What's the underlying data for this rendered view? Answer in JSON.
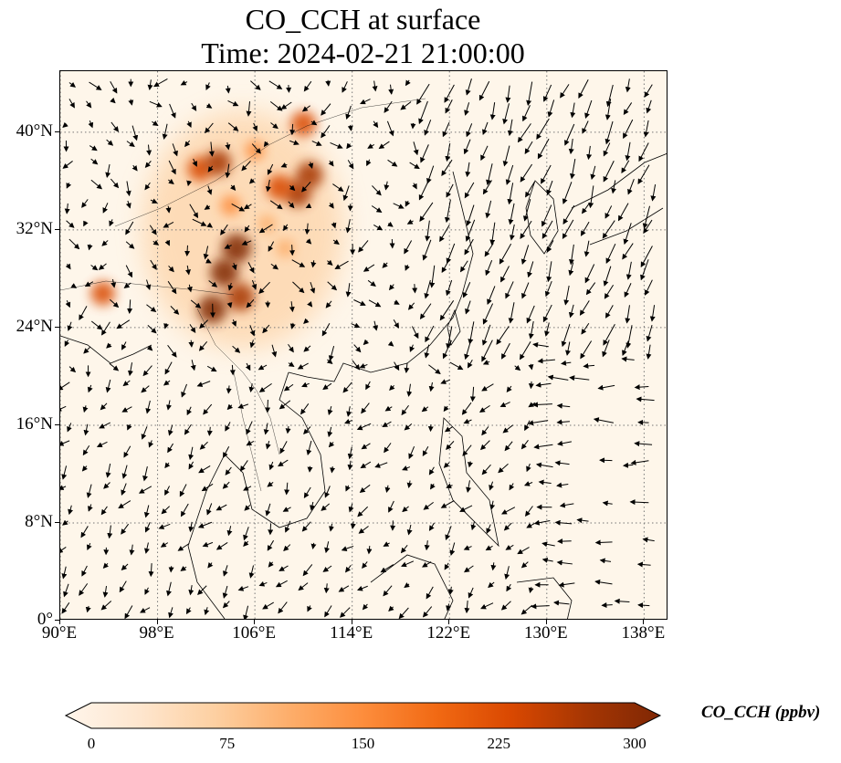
{
  "title_line1": "CO_CCH at surface",
  "title_line2": "Time: 2024-02-21 21:00:00",
  "map": {
    "extent": {
      "lon_min": 90,
      "lon_max": 140,
      "lat_min": 0,
      "lat_max": 45
    },
    "lat_ticks": [
      {
        "value": 40,
        "label": "40°N"
      },
      {
        "value": 32,
        "label": "32°N"
      },
      {
        "value": 24,
        "label": "24°N"
      },
      {
        "value": 16,
        "label": "16°N"
      },
      {
        "value": 8,
        "label": "8°N"
      },
      {
        "value": 0,
        "label": "0°"
      }
    ],
    "lon_ticks": [
      {
        "value": 90,
        "label": "90°E"
      },
      {
        "value": 98,
        "label": "98°E"
      },
      {
        "value": 106,
        "label": "106°E"
      },
      {
        "value": 114,
        "label": "114°E"
      },
      {
        "value": 122,
        "label": "122°E"
      },
      {
        "value": 130,
        "label": "130°E"
      },
      {
        "value": 138,
        "label": "138°E"
      }
    ],
    "gridlines": "dotted",
    "background_color": "#fef6ea",
    "wind_vectors": "shown",
    "hotspots": [
      {
        "lon": 104.5,
        "lat": 30.5,
        "value": 300
      },
      {
        "lon": 103.5,
        "lat": 28.5,
        "value": 290
      },
      {
        "lon": 104.8,
        "lat": 26.5,
        "value": 280
      },
      {
        "lon": 102.5,
        "lat": 25.5,
        "value": 290
      },
      {
        "lon": 109.5,
        "lat": 35.0,
        "value": 270
      },
      {
        "lon": 110.5,
        "lat": 36.5,
        "value": 260
      },
      {
        "lon": 108.0,
        "lat": 35.5,
        "value": 240
      },
      {
        "lon": 101.5,
        "lat": 37.0,
        "value": 230
      },
      {
        "lon": 103.0,
        "lat": 37.5,
        "value": 250
      },
      {
        "lon": 110.0,
        "lat": 40.7,
        "value": 240
      },
      {
        "lon": 93.5,
        "lat": 26.8,
        "value": 220
      },
      {
        "lon": 108.5,
        "lat": 30.5,
        "value": 120
      },
      {
        "lon": 107.0,
        "lat": 32.5,
        "value": 110
      },
      {
        "lon": 106.0,
        "lat": 38.5,
        "value": 140
      },
      {
        "lon": 104.0,
        "lat": 34.0,
        "value": 150
      }
    ]
  },
  "colorbar": {
    "label": "CO_CCH (ppbv)",
    "min": 0,
    "max": 300,
    "extend": "both",
    "ticks": [
      {
        "value": 0,
        "label": "0"
      },
      {
        "value": 75,
        "label": "75"
      },
      {
        "value": 150,
        "label": "150"
      },
      {
        "value": 225,
        "label": "225"
      },
      {
        "value": 300,
        "label": "300"
      }
    ],
    "colors": [
      "#fff5eb",
      "#fee6ce",
      "#fdd0a2",
      "#fdae6b",
      "#fd8d3c",
      "#f16913",
      "#d94801",
      "#a63603",
      "#7f2704"
    ]
  }
}
